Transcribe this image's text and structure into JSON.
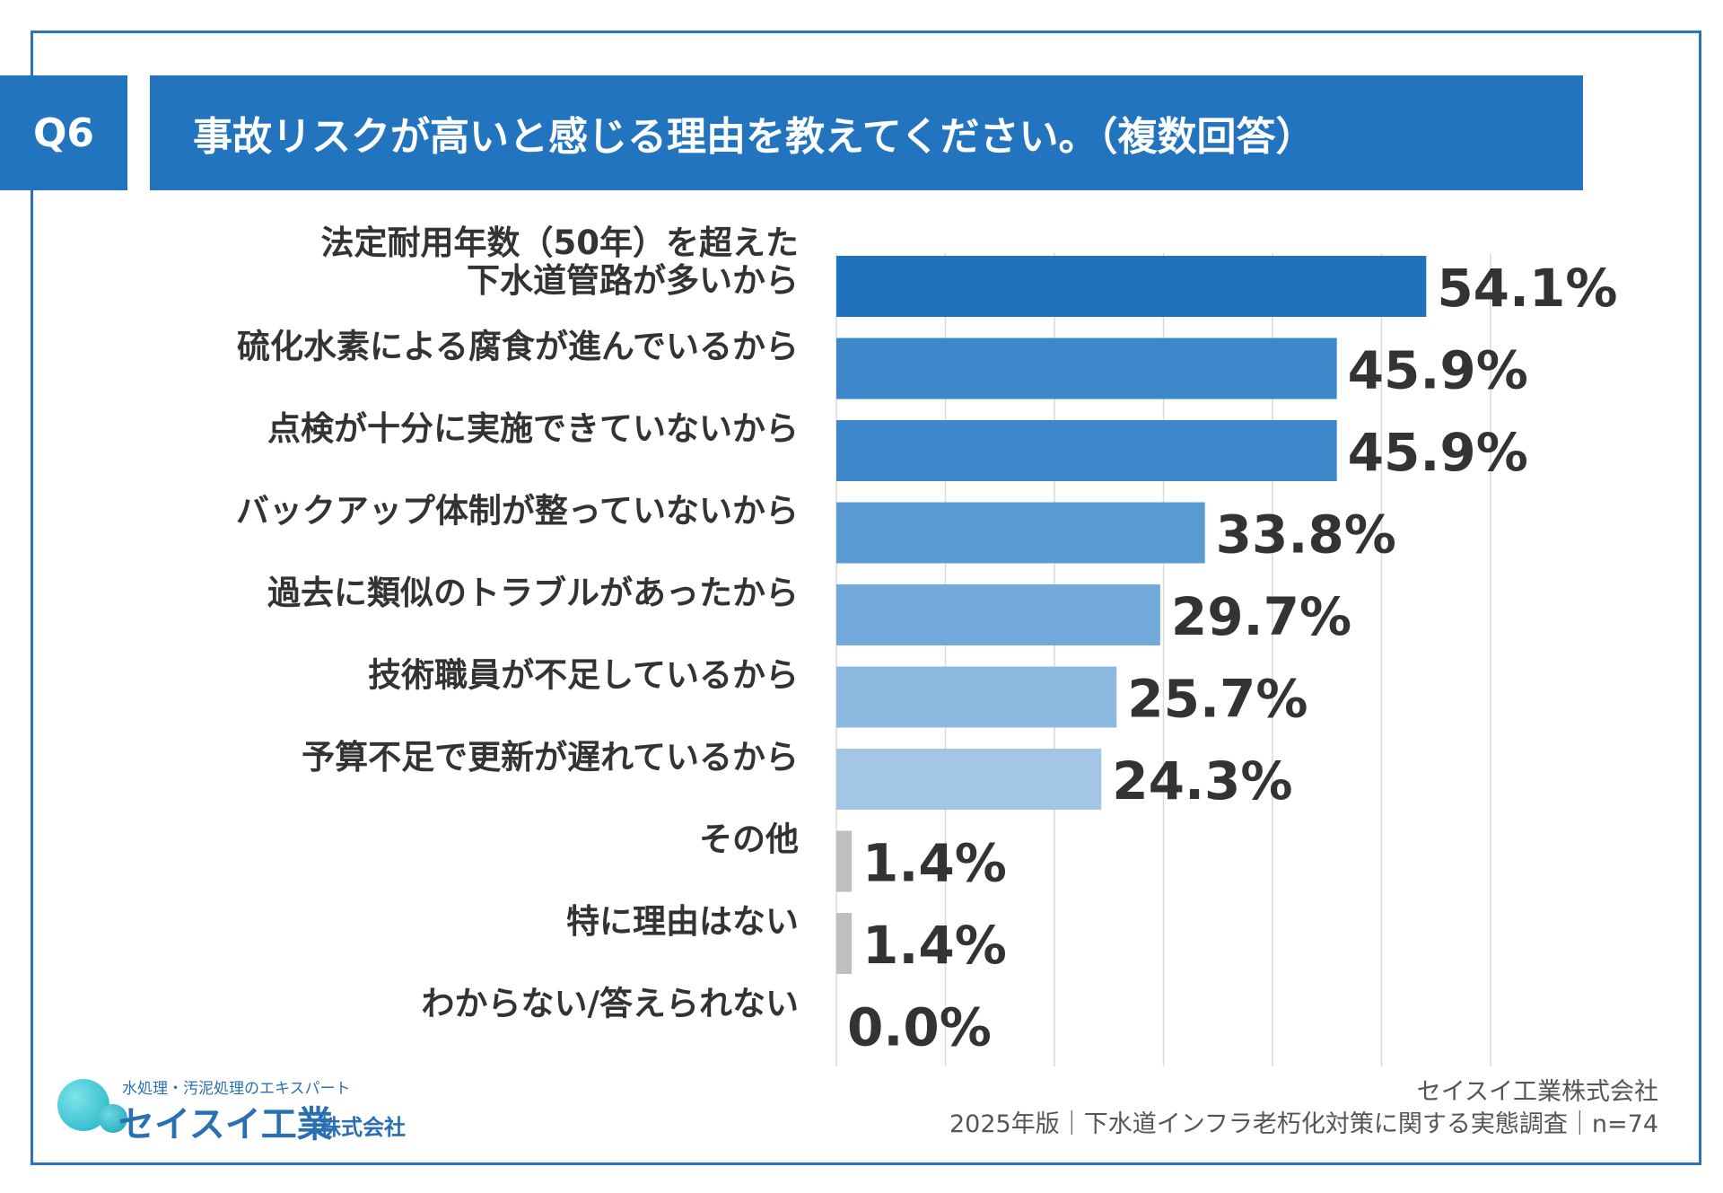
{
  "header": {
    "badge": "Q6",
    "title": "事故リスクが高いと感じる理由を教えてください。（複数回答）"
  },
  "chart_data": {
    "type": "bar",
    "orientation": "horizontal",
    "categories": [
      [
        "法定耐用年数（50年）を超えた",
        "下水道管路が多いから"
      ],
      [
        "硫化水素による腐食が進んでいるから"
      ],
      [
        "点検が十分に実施できていないから"
      ],
      [
        "バックアップ体制が整っていないから"
      ],
      [
        "過去に類似のトラブルがあったから"
      ],
      [
        "技術職員が不足しているから"
      ],
      [
        "予算不足で更新が遅れているから"
      ],
      [
        "その他"
      ],
      [
        "特に理由はない"
      ],
      [
        "わからない/答えられない"
      ]
    ],
    "values": [
      54.1,
      45.9,
      45.9,
      33.8,
      29.7,
      25.7,
      24.3,
      1.4,
      1.4,
      0.0
    ],
    "value_labels": [
      "54.1%",
      "45.9%",
      "45.9%",
      "33.8%",
      "29.7%",
      "25.7%",
      "24.3%",
      "1.4%",
      "1.4%",
      "0.0%"
    ],
    "colors": [
      "#1f73bd",
      "#3d87ca",
      "#3d87ca",
      "#5b9bd3",
      "#72a9da",
      "#8db9e1",
      "#a3c6e7",
      "#bfbfbf",
      "#bfbfbf",
      "#bfbfbf"
    ],
    "xlim": [
      0,
      60
    ],
    "grid": true,
    "gridline_step": 10
  },
  "footer": {
    "logo_tagline": "水処理・汚泥処理のエキスパート",
    "logo_name": "セイスイ工業",
    "logo_suffix": "株式会社",
    "company": "セイスイ工業株式会社",
    "survey": "2025年版｜下水道インフラ老朽化対策に関する実態調査｜n=74"
  },
  "colors": {
    "accent": "#2374bf",
    "frame": "#2a73b8",
    "grid": "#d9d9d9",
    "text": "#333333"
  }
}
